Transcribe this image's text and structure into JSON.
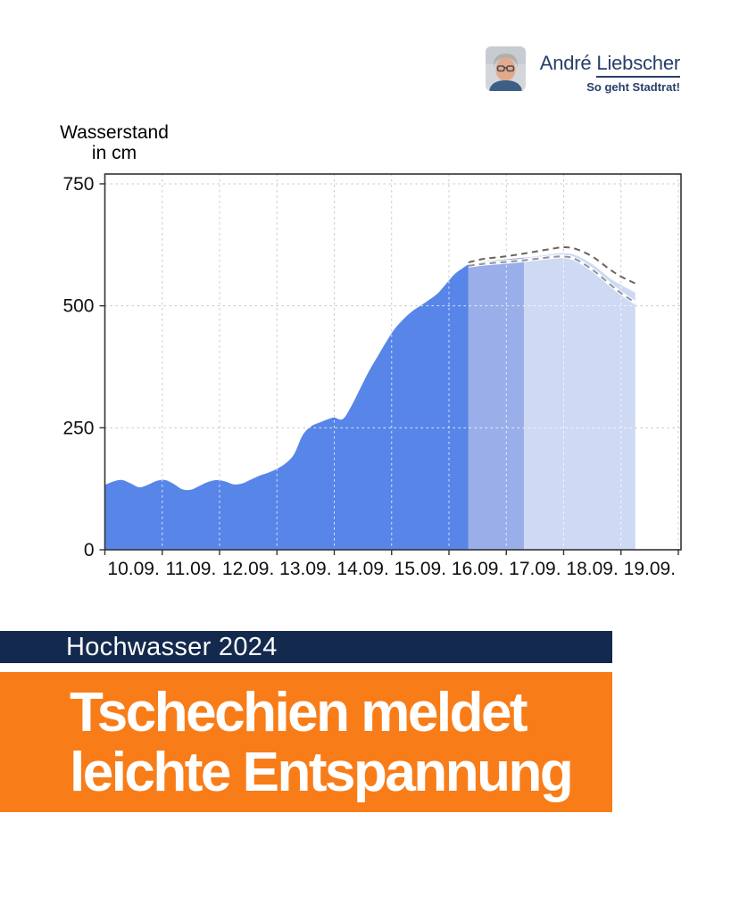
{
  "header": {
    "name_first": "André",
    "name_last": "Liebscher",
    "tagline": "So geht Stadtrat!"
  },
  "chart": {
    "title_line1": "Wasserstand",
    "title_line2": "in cm"
  },
  "chart_data": {
    "type": "area",
    "title": "Wasserstand in cm",
    "ylabel": "Wasserstand in cm",
    "xlabel": "",
    "x_tick_labels": [
      "10.09.",
      "11.09.",
      "12.09.",
      "13.09.",
      "14.09.",
      "15.09.",
      "16.09.",
      "17.09.",
      "18.09.",
      "19.09."
    ],
    "x_unit_note": "x values are days after 10.09. 00:00",
    "y_ticks": [
      0,
      250,
      500,
      750
    ],
    "ylim": [
      0,
      783
    ],
    "xlim": [
      0,
      10
    ],
    "grid": true,
    "legend_position": "none",
    "series": [
      {
        "name": "measured-water-level",
        "style": "area",
        "color": "#5886E8",
        "points": [
          [
            0,
            133
          ],
          [
            0.15,
            140
          ],
          [
            0.3,
            143
          ],
          [
            0.45,
            136
          ],
          [
            0.6,
            128
          ],
          [
            0.75,
            133
          ],
          [
            0.9,
            141
          ],
          [
            1.05,
            143
          ],
          [
            1.2,
            135
          ],
          [
            1.35,
            124
          ],
          [
            1.5,
            123
          ],
          [
            1.65,
            131
          ],
          [
            1.8,
            139
          ],
          [
            1.95,
            143
          ],
          [
            2.1,
            140
          ],
          [
            2.25,
            134
          ],
          [
            2.4,
            136
          ],
          [
            2.55,
            144
          ],
          [
            2.7,
            152
          ],
          [
            2.85,
            158
          ],
          [
            3.0,
            166
          ],
          [
            3.15,
            177
          ],
          [
            3.3,
            196
          ],
          [
            3.45,
            235
          ],
          [
            3.6,
            253
          ],
          [
            3.75,
            261
          ],
          [
            3.9,
            268
          ],
          [
            4.0,
            271
          ],
          [
            4.15,
            268
          ],
          [
            4.3,
            295
          ],
          [
            4.45,
            330
          ],
          [
            4.6,
            365
          ],
          [
            4.75,
            395
          ],
          [
            4.9,
            425
          ],
          [
            5.05,
            452
          ],
          [
            5.2,
            472
          ],
          [
            5.35,
            488
          ],
          [
            5.5,
            500
          ],
          [
            5.65,
            512
          ],
          [
            5.8,
            525
          ],
          [
            5.95,
            545
          ],
          [
            6.1,
            565
          ],
          [
            6.25,
            578
          ],
          [
            6.34,
            585
          ]
        ]
      },
      {
        "name": "forecast-expected",
        "style": "area",
        "color_short_term": "#9AAFE9",
        "color_extended": "#CEDAF4",
        "short_term_start": 6.34,
        "extended_start": 7.31,
        "end": 9.25,
        "points": [
          [
            6.34,
            585
          ],
          [
            6.6,
            590
          ],
          [
            6.9,
            594
          ],
          [
            7.31,
            599
          ],
          [
            7.5,
            601
          ],
          [
            7.8,
            606
          ],
          [
            8.0,
            608
          ],
          [
            8.2,
            604
          ],
          [
            8.5,
            585
          ],
          [
            8.8,
            557
          ],
          [
            9.0,
            543
          ],
          [
            9.25,
            527
          ]
        ]
      },
      {
        "name": "forecast-upper-bound",
        "style": "dashed",
        "color": "#6B6458",
        "points": [
          [
            6.34,
            589
          ],
          [
            6.6,
            596
          ],
          [
            6.9,
            600
          ],
          [
            7.2,
            605
          ],
          [
            7.5,
            611
          ],
          [
            7.8,
            617
          ],
          [
            8.0,
            620
          ],
          [
            8.2,
            617
          ],
          [
            8.5,
            601
          ],
          [
            8.8,
            575
          ],
          [
            9.0,
            560
          ],
          [
            9.3,
            543
          ]
        ]
      },
      {
        "name": "forecast-lower-bound",
        "style": "dashed",
        "color": "#8E939E",
        "points": [
          [
            6.34,
            582
          ],
          [
            6.6,
            586
          ],
          [
            6.9,
            589
          ],
          [
            7.2,
            592
          ],
          [
            7.5,
            596
          ],
          [
            7.8,
            600
          ],
          [
            8.0,
            601
          ],
          [
            8.2,
            596
          ],
          [
            8.5,
            574
          ],
          [
            8.8,
            545
          ],
          [
            9.0,
            526
          ],
          [
            9.25,
            506
          ]
        ]
      }
    ],
    "gridline_color": "#C9C9C9",
    "axis_color": "#333333",
    "tick_label_color": "#111111"
  },
  "banner": {
    "label": "Hochwasser 2024"
  },
  "headline": {
    "line1": "Tschechien meldet",
    "line2": "leichte Entspannung"
  },
  "colors": {
    "navy": "#13294D",
    "orange": "#F87D19",
    "brand_text": "#27406b"
  }
}
